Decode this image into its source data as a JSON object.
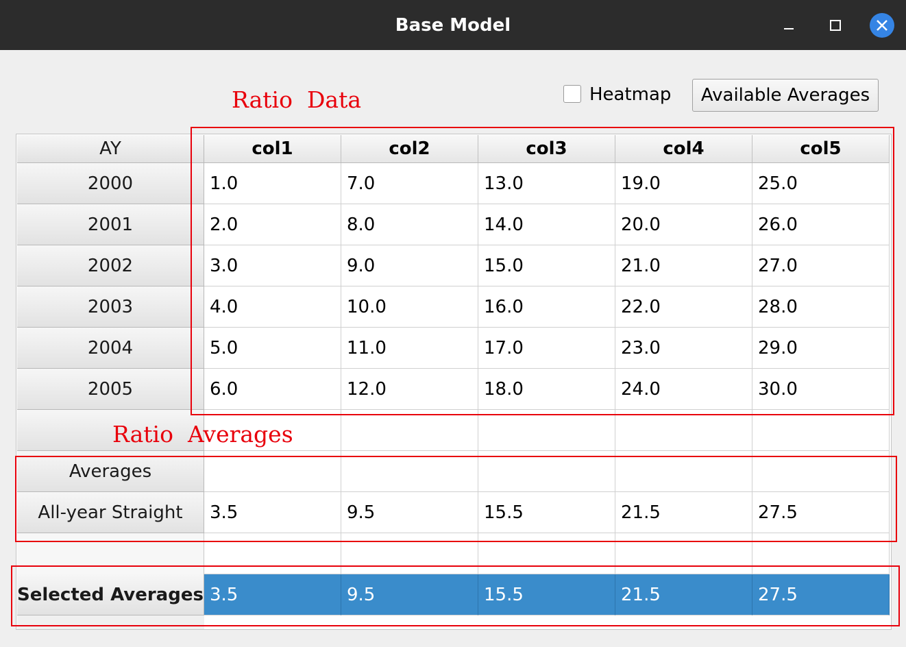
{
  "window": {
    "title": "Base Model"
  },
  "toolbar": {
    "heatmap": "Heatmap",
    "button": "Available Averages"
  },
  "annotations": {
    "data": "Ratio  Data",
    "averages": "Ratio  Averages"
  },
  "table": {
    "corner": "AY",
    "columns": [
      "col1",
      "col2",
      "col3",
      "col4",
      "col5"
    ],
    "rows": [
      {
        "header": "2000",
        "cells": [
          "1.0",
          "7.0",
          "13.0",
          "19.0",
          "25.0"
        ]
      },
      {
        "header": "2001",
        "cells": [
          "2.0",
          "8.0",
          "14.0",
          "20.0",
          "26.0"
        ]
      },
      {
        "header": "2002",
        "cells": [
          "3.0",
          "9.0",
          "15.0",
          "21.0",
          "27.0"
        ]
      },
      {
        "header": "2003",
        "cells": [
          "4.0",
          "10.0",
          "16.0",
          "22.0",
          "28.0"
        ]
      },
      {
        "header": "2004",
        "cells": [
          "5.0",
          "11.0",
          "17.0",
          "23.0",
          "29.0"
        ]
      },
      {
        "header": "2005",
        "cells": [
          "6.0",
          "12.0",
          "18.0",
          "24.0",
          "30.0"
        ]
      }
    ],
    "averages_header": "Averages",
    "averages": [
      {
        "header": "All-year Straight",
        "cells": [
          "3.5",
          "9.5",
          "15.5",
          "21.5",
          "27.5"
        ]
      }
    ],
    "selected": {
      "header": "Selected Averages",
      "cells": [
        "3.5",
        "9.5",
        "15.5",
        "21.5",
        "27.5"
      ]
    }
  }
}
